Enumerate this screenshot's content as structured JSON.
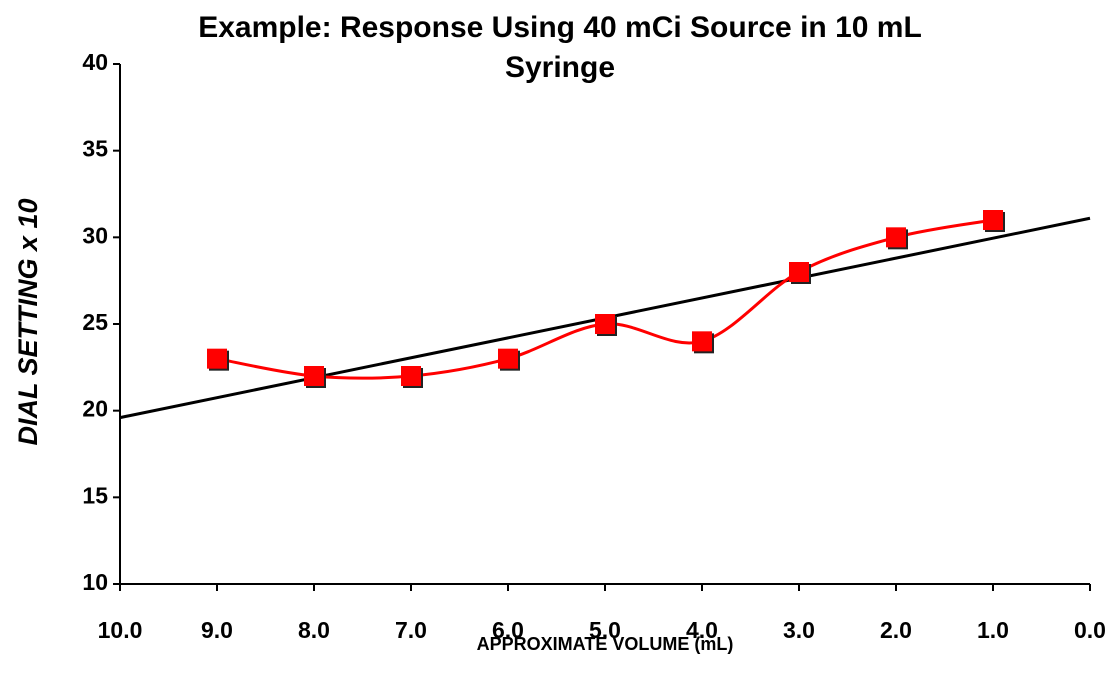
{
  "chart_data": {
    "type": "line",
    "title": "Example: Response Using 40 mCi Source in 10 mL Syringe",
    "xlabel": "APPROXIMATE VOLUME (mL)",
    "ylabel": "DIAL SETTING  x 10",
    "x": [
      9,
      8,
      7,
      6,
      5,
      4,
      3,
      2,
      1
    ],
    "series": [
      {
        "color": "#ff0000",
        "values": [
          23,
          22,
          22,
          23,
          25,
          24,
          28,
          30,
          31
        ],
        "smooth": true,
        "marker": "square"
      }
    ],
    "trendline": {
      "color": "#000000",
      "x": [
        10,
        0
      ],
      "values": [
        19.6,
        31.1
      ]
    },
    "xlim": [
      10,
      0
    ],
    "xticks": [
      {
        "value": 10,
        "label": "10.0"
      },
      {
        "value": 9,
        "label": "9.0"
      },
      {
        "value": 8,
        "label": "8.0"
      },
      {
        "value": 7,
        "label": "7.0"
      },
      {
        "value": 6,
        "label": "6.0"
      },
      {
        "value": 5,
        "label": "5.0"
      },
      {
        "value": 4,
        "label": "4.0"
      },
      {
        "value": 3,
        "label": "3.0"
      },
      {
        "value": 2,
        "label": "2.0"
      },
      {
        "value": 1,
        "label": "1.0"
      },
      {
        "value": 0,
        "label": "0.0"
      }
    ],
    "ylim": [
      10,
      40
    ],
    "yticks": [
      10,
      15,
      20,
      25,
      30,
      35,
      40
    ],
    "grid": false
  }
}
